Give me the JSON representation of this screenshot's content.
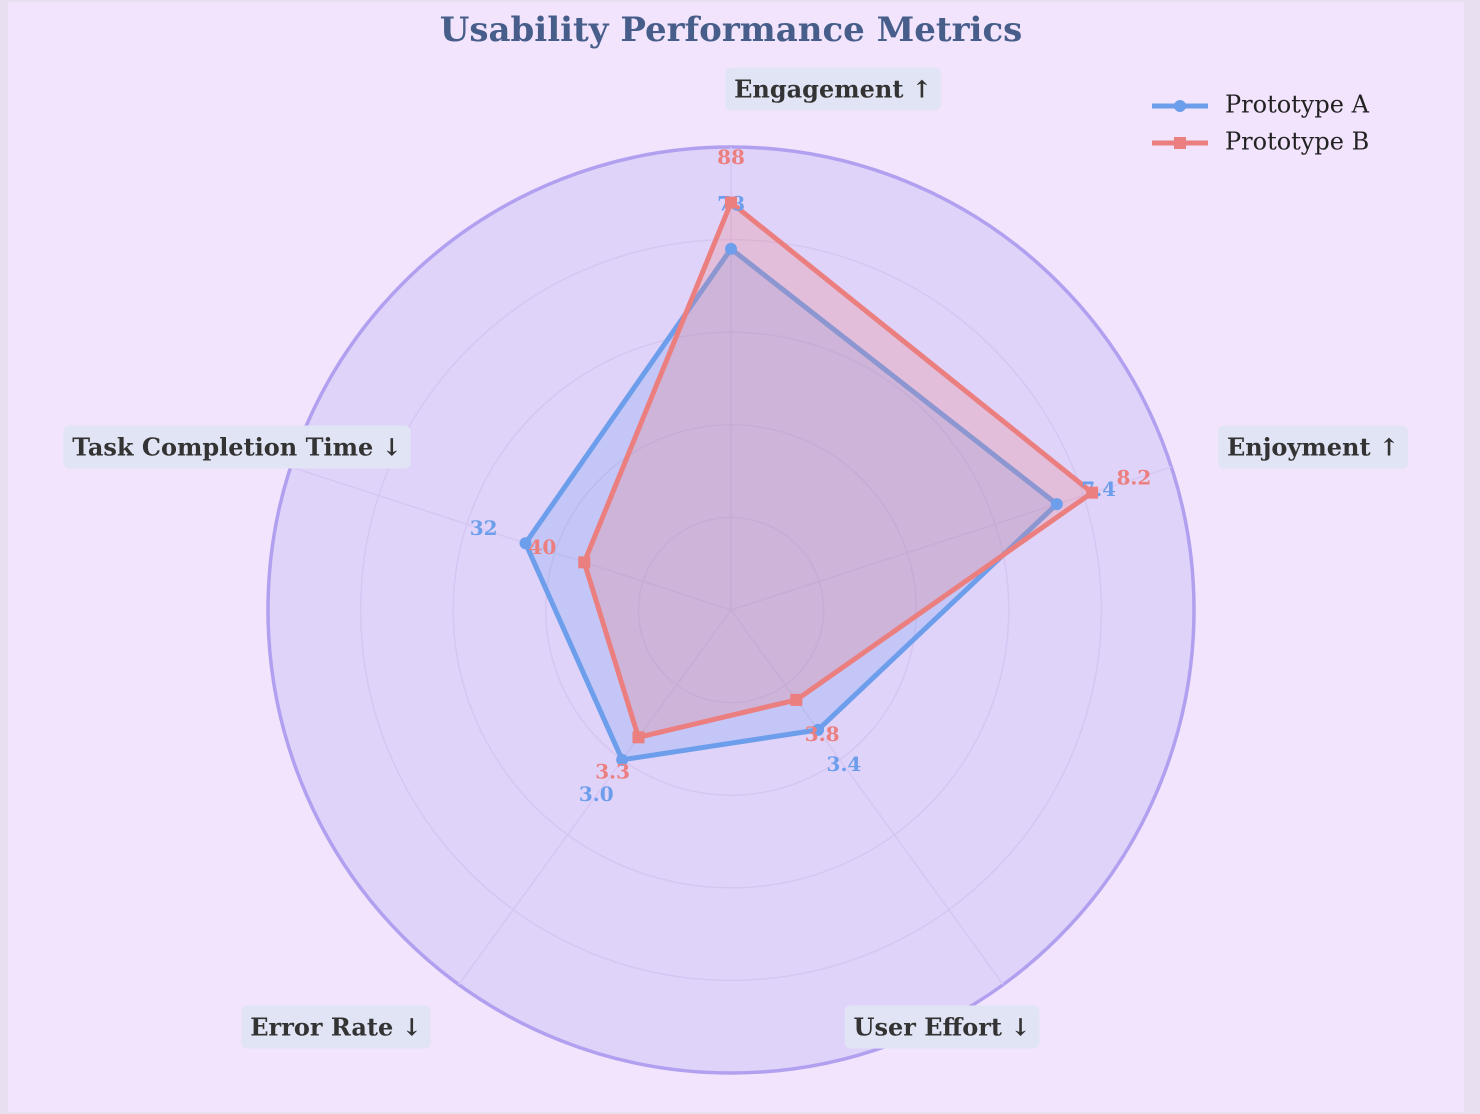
{
  "chart_data": {
    "type": "radar",
    "title": "Usability Performance Metrics",
    "axes": [
      {
        "label": "Engagement ↑",
        "lim": [
          0,
          100
        ]
      },
      {
        "label": "Enjoyment ↑",
        "lim": [
          0,
          10
        ]
      },
      {
        "label": "User Effort ↓",
        "lim": [
          5,
          0
        ]
      },
      {
        "label": "Error Rate ↓",
        "lim": [
          5,
          0
        ]
      },
      {
        "label": "Task Completion Time ↓",
        "lim": [
          60,
          0
        ]
      }
    ],
    "rlim": [
      0,
      1
    ],
    "rticks": [
      0.2,
      0.4,
      0.6,
      0.8,
      1.0
    ],
    "grid": true,
    "legend": "upper right",
    "series": [
      {
        "name": "Prototype A",
        "color": "#6d9eeb",
        "marker": "circle",
        "values": [
          78,
          7.4,
          3.4,
          3.0,
          32
        ],
        "value_labels": [
          "78",
          "7.4",
          "3.4",
          "3.0",
          "32"
        ]
      },
      {
        "name": "Prototype B",
        "color": "#eb7f7f",
        "marker": "square",
        "values": [
          88,
          8.2,
          3.8,
          3.3,
          40
        ],
        "value_labels": [
          "88",
          "8.2",
          "3.8",
          "3.3",
          "40"
        ]
      }
    ]
  }
}
